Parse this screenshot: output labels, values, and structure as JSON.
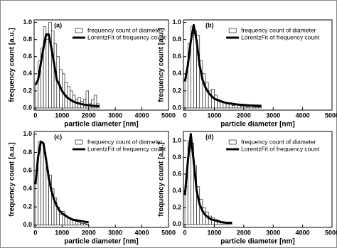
{
  "chart_data": [
    {
      "type": "histogram",
      "label": "(a)",
      "x_label": "particle diameter [nm]",
      "y_label": "frequency count [a.u.]",
      "xlim": [
        -50,
        5000
      ],
      "ylim": [
        -0.025,
        1.03
      ],
      "xticks": [
        0,
        1000,
        2000,
        3000,
        4000,
        5000
      ],
      "yticks": [
        {
          "value": 0,
          "label": "0.0"
        },
        0.2,
        0.4,
        0.6,
        0.8,
        {
          "value": 1,
          "label": "1.0"
        }
      ],
      "series": [
        {
          "name": "frequency count of diameter",
          "type": "histogram",
          "color": "#ffffff",
          "bins": [
            0,
            100,
            200,
            300,
            400,
            500,
            600,
            700,
            800,
            900,
            1000,
            1100,
            1200,
            1300,
            1400,
            1500,
            1600,
            1700,
            1800,
            1900,
            2000,
            2100,
            2200,
            2300,
            2400
          ],
          "values": [
            0.3,
            0.55,
            0.7,
            0.95,
            0.8,
            1.0,
            0.9,
            0.75,
            0.6,
            0.45,
            0.4,
            0.3,
            0.25,
            0.2,
            0.15,
            0.1,
            0.12,
            0.08,
            0.1,
            0.2,
            0.05,
            0.1,
            0.15,
            0.05
          ]
        },
        {
          "name": "LorentzFit of frequency count",
          "type": "line",
          "color": "#000000",
          "x": [
            0,
            100,
            200,
            300,
            400,
            500,
            600,
            700,
            800,
            900,
            1000,
            1100,
            1200,
            1300,
            1400,
            1500,
            1600,
            1700,
            1800,
            1900,
            2000,
            2100,
            2200,
            2300,
            2400
          ],
          "values": [
            0.27,
            0.33,
            0.52,
            0.7,
            0.86,
            0.86,
            0.7,
            0.52,
            0.33,
            0.27,
            0.2,
            0.155,
            0.12,
            0.1,
            0.08,
            0.066,
            0.056,
            0.048,
            0.041,
            0.036,
            0.032,
            0.028,
            0.025,
            0.023,
            0.02
          ]
        }
      ]
    },
    {
      "type": "histogram",
      "label": "(b)",
      "x_label": "particle diameter [nm]",
      "y_label": "frequency count [a.u.]",
      "xlim": [
        -50,
        5000
      ],
      "ylim": [
        -0.025,
        1.03
      ],
      "xticks": [
        0,
        1000,
        2000,
        3000,
        4000,
        5000
      ],
      "yticks": [
        {
          "value": 0,
          "label": "0.0"
        },
        0.2,
        0.4,
        0.6,
        0.8,
        {
          "value": 1,
          "label": "1.0"
        }
      ],
      "series": [
        {
          "name": "frequency count of diameter",
          "type": "histogram",
          "color": "#ffffff",
          "bins": [
            0,
            100,
            200,
            300,
            400,
            500,
            600,
            700,
            800,
            900,
            1000,
            1100,
            1200,
            1300,
            1400,
            1500,
            1600,
            1700,
            1800,
            1900,
            2000,
            2100,
            2200,
            2300,
            2400,
            2500,
            2600
          ],
          "values": [
            0.35,
            0.75,
            0.95,
            0.9,
            0.85,
            0.55,
            0.4,
            0.3,
            0.2,
            0.22,
            0.15,
            0.1,
            0.08,
            0.06,
            0.05,
            0.05,
            0.03,
            0.04,
            0.03,
            0.02,
            0.02,
            0.01,
            0.02,
            0.01,
            0.01,
            0.01
          ]
        },
        {
          "name": "LorentzFit of frequency count",
          "type": "line",
          "color": "#000000",
          "x": [
            0,
            100,
            200,
            300,
            400,
            500,
            600,
            700,
            800,
            900,
            1000,
            1200,
            1400,
            1600,
            1800,
            2000,
            2200,
            2400,
            2600
          ],
          "values": [
            0.31,
            0.5,
            0.78,
            0.97,
            0.78,
            0.5,
            0.33,
            0.24,
            0.18,
            0.14,
            0.11,
            0.08,
            0.06,
            0.05,
            0.04,
            0.035,
            0.03,
            0.028,
            0.025
          ]
        }
      ]
    },
    {
      "type": "histogram",
      "label": "(c)",
      "x_label": "particle diameter [nm]",
      "y_label": "frequency count [a.u.]",
      "xlim": [
        -50,
        5000
      ],
      "ylim": [
        -0.025,
        1.03
      ],
      "xticks": [
        0,
        1000,
        2000,
        3000,
        4000,
        5000
      ],
      "yticks": [
        {
          "value": 0,
          "label": "0.0"
        },
        0.2,
        0.4,
        0.6,
        0.8,
        {
          "value": 1,
          "label": "1.0"
        }
      ],
      "series": [
        {
          "name": "frequency count of diameter",
          "type": "histogram",
          "color": "#ffffff",
          "bins": [
            0,
            100,
            200,
            300,
            400,
            500,
            600,
            700,
            800,
            900,
            1000,
            1100,
            1200,
            1300,
            1400,
            1500,
            1600,
            1700,
            1800,
            1900,
            2000
          ],
          "values": [
            0.55,
            0.92,
            0.9,
            0.8,
            0.6,
            0.55,
            0.4,
            0.3,
            0.2,
            0.12,
            0.15,
            0.1,
            0.08,
            0.06,
            0.05,
            0.04,
            0.03,
            0.02,
            0.02,
            0.01
          ]
        },
        {
          "name": "LorentzFit of frequency count",
          "type": "line",
          "color": "#000000",
          "x": [
            0,
            100,
            200,
            300,
            400,
            500,
            600,
            700,
            800,
            900,
            1000,
            1200,
            1400,
            1600,
            1800,
            2000
          ],
          "values": [
            0.45,
            0.75,
            0.92,
            0.9,
            0.72,
            0.52,
            0.38,
            0.28,
            0.21,
            0.16,
            0.13,
            0.09,
            0.06,
            0.05,
            0.04,
            0.03
          ]
        }
      ]
    },
    {
      "type": "histogram",
      "label": "(d)",
      "x_label": "particle diameter [nm]",
      "y_label": "frequency count [a.u.]",
      "xlim": [
        -50,
        5000
      ],
      "ylim": [
        -0.035,
        1.11
      ],
      "xticks": [
        0,
        1000,
        2000,
        3000,
        4000,
        5000
      ],
      "yticks": [
        {
          "value": 0,
          "label": "0.0"
        },
        0.2,
        0.4,
        0.6,
        0.8,
        {
          "value": 1,
          "label": "1.0"
        }
      ],
      "series": [
        {
          "name": "frequency count of diameter",
          "type": "histogram",
          "color": "#ffffff",
          "bins": [
            0,
            100,
            200,
            300,
            400,
            500,
            600,
            700,
            800,
            900,
            1000,
            1100,
            1200,
            1300,
            1400,
            1500,
            1600
          ],
          "values": [
            0.45,
            1.0,
            0.97,
            0.7,
            0.45,
            0.3,
            0.2,
            0.15,
            0.1,
            0.08,
            0.06,
            0.05,
            0.03,
            0.02,
            0.02,
            0.01
          ]
        },
        {
          "name": "LorentzFit of frequency count",
          "type": "line",
          "color": "#000000",
          "x": [
            0,
            100,
            200,
            300,
            400,
            500,
            600,
            700,
            800,
            900,
            1000,
            1200,
            1400,
            1600
          ],
          "values": [
            0.35,
            0.75,
            1.08,
            0.75,
            0.4,
            0.24,
            0.16,
            0.11,
            0.08,
            0.06,
            0.05,
            0.03,
            0.02,
            0.02
          ]
        }
      ]
    }
  ]
}
